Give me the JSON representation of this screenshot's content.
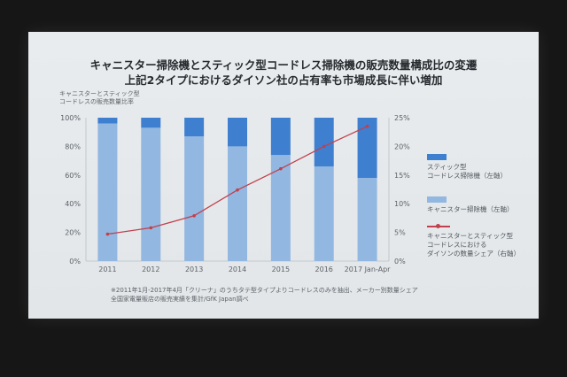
{
  "slide": {
    "title_line1": "キャニスター掃除機とスティック型コードレス掃除機の販売数量構成比の変遷",
    "title_line2": "上記2タイプにおけるダイソン社の占有率も市場成長に伴い増加"
  },
  "left_axis_title": [
    "キャニスターとスティック型",
    "コードレスの販売数量比率"
  ],
  "footnote": [
    "※2011年1月-2017年4月「クリーナ」のうちタテ型タイプよりコードレスのみを抽出、メーカー別数量シェア",
    "全国家電量販店の販売実績を集計/GfK Japan調べ"
  ],
  "legend": {
    "stick_lines": [
      "スティック型",
      "コードレス掃除機（左軸）"
    ],
    "canister_lines": [
      "キャニスター掃除機（左軸）"
    ],
    "dyson_lines": [
      "キャニスターとスティック型",
      "コードレスにおける",
      "ダイソンの数量シェア（右軸）"
    ]
  },
  "colors": {
    "stick": "#3f7fd0",
    "canister": "#92b7e0",
    "dyson_line": "#c1404d",
    "slide_bg": "#e6e9eb",
    "screen_bg": "#161616"
  },
  "chart_data": {
    "type": "bar",
    "categories": [
      "2011",
      "2012",
      "2013",
      "2014",
      "2015",
      "2016",
      "2017 Jan-Apr"
    ],
    "y_left_ticks": [
      "0%",
      "20%",
      "40%",
      "60%",
      "80%",
      "100%"
    ],
    "y_right_ticks": [
      "0%",
      "5%",
      "10%",
      "15%",
      "20%",
      "25%"
    ],
    "ylim_left": [
      0,
      100
    ],
    "ylim_right": [
      0,
      25
    ],
    "stacked": true,
    "series": [
      {
        "name": "キャニスター掃除機（左軸）",
        "axis": "left",
        "type": "bar",
        "values": [
          96,
          93,
          87,
          80,
          74,
          66,
          58
        ]
      },
      {
        "name": "スティック型コードレス掃除機（左軸）",
        "axis": "left",
        "type": "bar",
        "values": [
          4,
          7,
          13,
          20,
          26,
          34,
          42
        ]
      },
      {
        "name": "キャニスターとスティック型コードレスにおけるダイソンの数量シェア（右軸）",
        "axis": "right",
        "type": "line",
        "values": [
          4.7,
          5.8,
          7.9,
          12.4,
          16.1,
          20.0,
          23.5
        ]
      }
    ],
    "grid": false
  }
}
